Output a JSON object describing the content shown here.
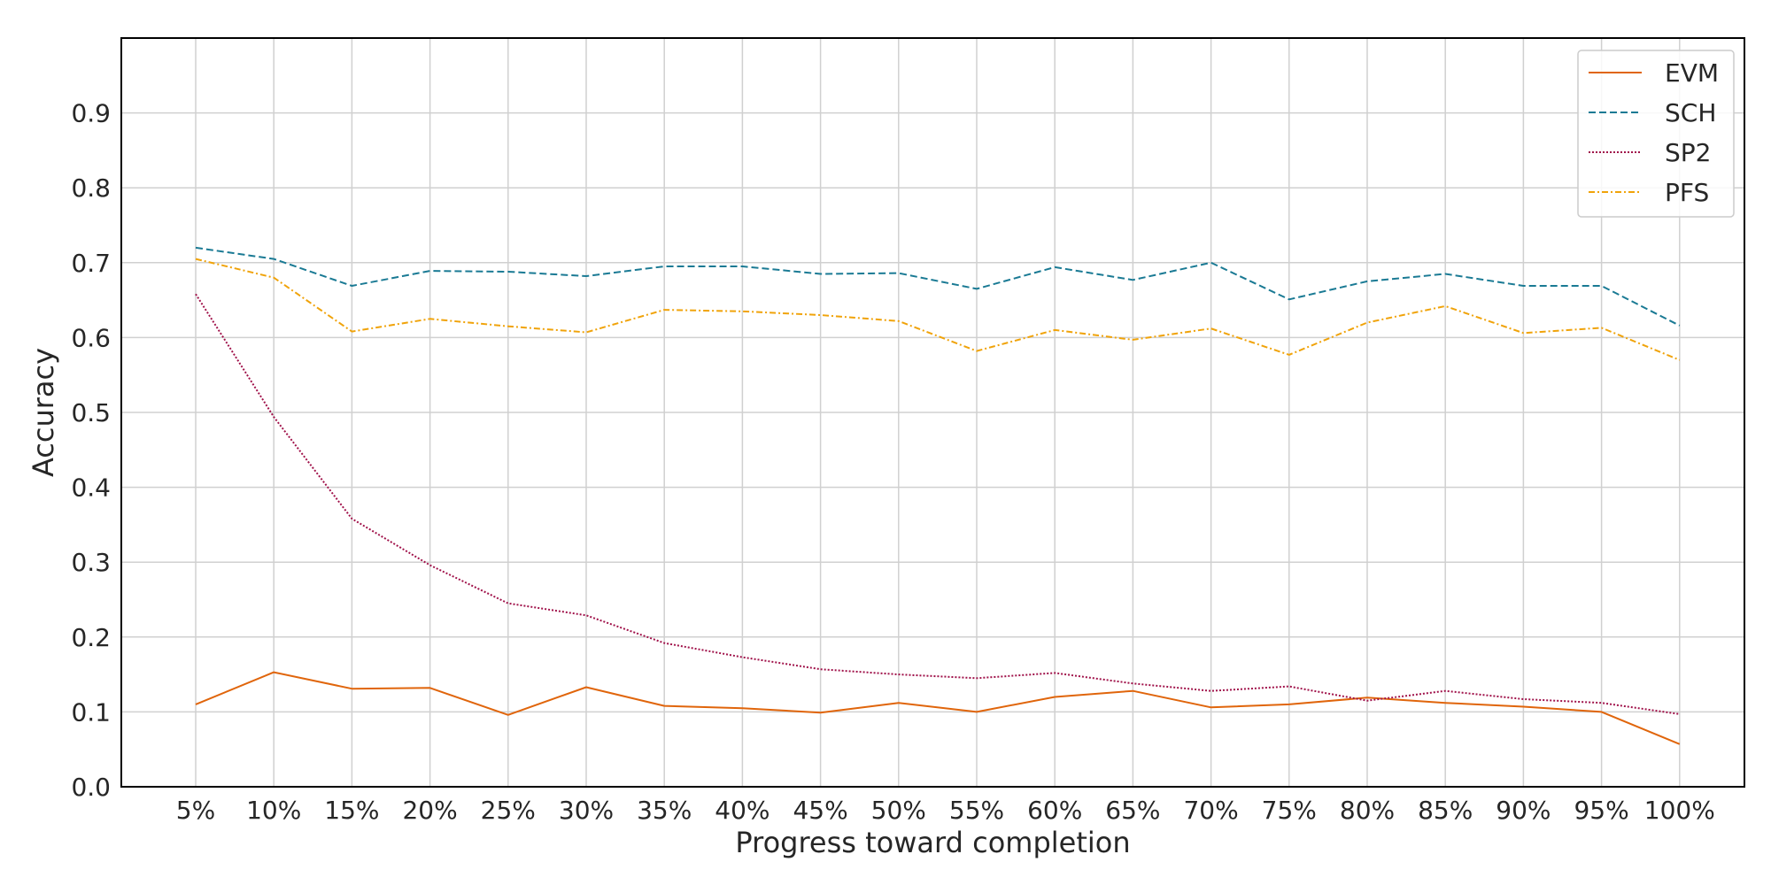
{
  "chart_data": {
    "type": "line",
    "xlabel": "Progress toward completion",
    "ylabel": "Accuracy",
    "categories": [
      "5%",
      "10%",
      "15%",
      "20%",
      "25%",
      "30%",
      "35%",
      "40%",
      "45%",
      "50%",
      "55%",
      "60%",
      "65%",
      "70%",
      "75%",
      "80%",
      "85%",
      "90%",
      "95%",
      "100%"
    ],
    "ylim": [
      0,
      1.0
    ],
    "yticks": [
      "0.0",
      "0.1",
      "0.2",
      "0.3",
      "0.4",
      "0.5",
      "0.6",
      "0.7",
      "0.8",
      "0.9"
    ],
    "grid": true,
    "legend_position": "top-right",
    "series": [
      {
        "name": "EVM",
        "style": "solid",
        "color": "#e0650b",
        "values": [
          0.11,
          0.153,
          0.131,
          0.132,
          0.096,
          0.133,
          0.108,
          0.105,
          0.099,
          0.112,
          0.1,
          0.12,
          0.128,
          0.106,
          0.11,
          0.119,
          0.112,
          0.107,
          0.1,
          0.057
        ]
      },
      {
        "name": "SCH",
        "style": "dashed",
        "color": "#1a7a94",
        "values": [
          0.72,
          0.705,
          0.669,
          0.689,
          0.688,
          0.682,
          0.695,
          0.695,
          0.685,
          0.686,
          0.665,
          0.694,
          0.677,
          0.7,
          0.651,
          0.675,
          0.685,
          0.669,
          0.669,
          0.616
        ]
      },
      {
        "name": "SP2",
        "style": "dotted",
        "color": "#a0124a",
        "values": [
          0.658,
          0.494,
          0.358,
          0.296,
          0.245,
          0.229,
          0.192,
          0.173,
          0.157,
          0.15,
          0.145,
          0.152,
          0.138,
          0.128,
          0.134,
          0.115,
          0.128,
          0.117,
          0.112,
          0.097
        ]
      },
      {
        "name": "PFS",
        "style": "dashdot",
        "color": "#f0a30a",
        "values": [
          0.705,
          0.68,
          0.608,
          0.625,
          0.615,
          0.607,
          0.637,
          0.635,
          0.63,
          0.622,
          0.582,
          0.61,
          0.597,
          0.612,
          0.577,
          0.62,
          0.642,
          0.606,
          0.613,
          0.57
        ]
      }
    ]
  }
}
